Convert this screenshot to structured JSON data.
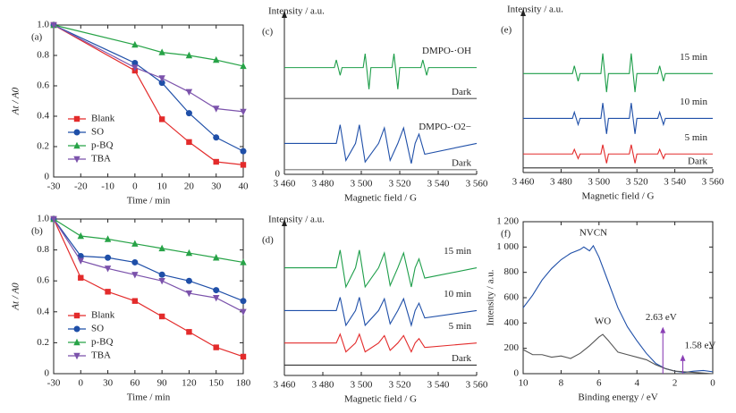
{
  "chart_data": [
    {
      "type": "line",
      "label": "(a)",
      "xlabel": "Time / min",
      "ylabel": "At / A0",
      "frame": "box",
      "legend": "lower left",
      "x": [
        -30,
        0,
        10,
        20,
        30,
        40
      ],
      "xlim": [
        -30,
        40
      ],
      "xticks": [
        -30,
        -20,
        -10,
        0,
        10,
        20,
        30,
        40
      ],
      "ylim": [
        0,
        1
      ],
      "yticks": [
        0,
        0.2,
        0.4,
        0.6,
        0.8,
        {
          "value": 1,
          "label": "1.0"
        }
      ],
      "series": [
        {
          "name": "Blank",
          "color": "#e32b2b",
          "marker": "square",
          "values": [
            1.0,
            0.7,
            0.38,
            0.23,
            0.1,
            0.08
          ]
        },
        {
          "name": "SO",
          "color": "#1f4fa8",
          "marker": "circle",
          "values": [
            1.0,
            0.75,
            0.62,
            0.42,
            0.26,
            0.17
          ]
        },
        {
          "name": "p-BQ",
          "color": "#27a347",
          "marker": "triangle-up",
          "values": [
            1.0,
            0.87,
            0.82,
            0.8,
            0.77,
            0.73
          ]
        },
        {
          "name": "TBA",
          "color": "#7b52ab",
          "marker": "triangle-down",
          "values": [
            1.0,
            0.72,
            0.65,
            0.56,
            0.45,
            0.43
          ]
        }
      ]
    },
    {
      "type": "line",
      "label": "(b)",
      "xlabel": "Time / min",
      "ylabel": "At / A0",
      "frame": "box",
      "legend": "lower left",
      "x": [
        -30,
        0,
        30,
        60,
        90,
        120,
        150,
        180
      ],
      "xlim": [
        -30,
        180
      ],
      "xticks": [
        -30,
        0,
        30,
        60,
        90,
        120,
        150,
        180
      ],
      "ylim": [
        0,
        1
      ],
      "yticks": [
        0,
        0.2,
        0.4,
        0.6,
        0.8,
        {
          "value": 1,
          "label": "1.0"
        }
      ],
      "series": [
        {
          "name": "Blank",
          "color": "#e32b2b",
          "marker": "square",
          "values": [
            1.0,
            0.62,
            0.53,
            0.47,
            0.37,
            0.27,
            0.17,
            0.11
          ]
        },
        {
          "name": "SO",
          "color": "#1f4fa8",
          "marker": "circle",
          "values": [
            1.0,
            0.76,
            0.75,
            0.72,
            0.64,
            0.6,
            0.54,
            0.47
          ]
        },
        {
          "name": "p-BQ",
          "color": "#27a347",
          "marker": "triangle-up",
          "values": [
            1.0,
            0.89,
            0.87,
            0.84,
            0.81,
            0.78,
            0.75,
            0.72
          ]
        },
        {
          "name": "TBA",
          "color": "#7b52ab",
          "marker": "triangle-down",
          "values": [
            1.0,
            0.73,
            0.68,
            0.64,
            0.6,
            0.52,
            0.49,
            0.4
          ]
        }
      ]
    },
    {
      "type": "line",
      "label": "(c)",
      "xlabel": "Magnetic field / G",
      "ylabel": "Intensity / a.u.",
      "frame": "axes",
      "direct_labels": "end",
      "xlim": [
        3460,
        3560
      ],
      "xticks": [
        {
          "value": 3460,
          "label": "3 460"
        },
        {
          "value": 3480,
          "label": "3 480"
        },
        {
          "value": 3500,
          "label": "3 500"
        },
        {
          "value": 3520,
          "label": "3 520"
        },
        {
          "value": 3540,
          "label": "3 540"
        },
        {
          "value": 3560,
          "label": "3 560"
        }
      ],
      "ylim": [
        0,
        10
      ],
      "yticks": [
        0
      ],
      "series": [
        {
          "name": "DMPO-·OH",
          "color": "#1e9e4a",
          "x": [
            3460,
            3486,
            3487,
            3489,
            3490,
            3501,
            3502,
            3504,
            3505,
            3516,
            3517,
            3519,
            3520,
            3531,
            3532,
            3534,
            3535,
            3560
          ],
          "values": [
            6.9,
            6.9,
            7.4,
            6.4,
            6.9,
            6.9,
            7.8,
            5.5,
            6.9,
            6.9,
            7.8,
            5.5,
            6.9,
            6.9,
            7.4,
            6.4,
            6.9,
            6.9
          ]
        },
        {
          "name": "Dark",
          "color": "#555555",
          "x": [
            3460,
            3560
          ],
          "values": [
            4.9,
            4.9
          ]
        },
        {
          "name": "DMPO-·O2−",
          "color": "#1f4fa8",
          "x": [
            3460,
            3487,
            3489,
            3492,
            3497,
            3499,
            3502,
            3509,
            3512,
            3515,
            3519,
            3522,
            3526,
            3528,
            3530,
            3533,
            3560
          ],
          "values": [
            2.0,
            2.0,
            3.2,
            0.9,
            2.0,
            3.2,
            0.8,
            2.0,
            3.0,
            0.9,
            2.0,
            3.0,
            0.7,
            2.0,
            2.6,
            1.3,
            2.0
          ]
        },
        {
          "name": "Dark",
          "color": "#777777",
          "x": [
            3460,
            3560
          ],
          "values": [
            0.3,
            0.3
          ]
        }
      ]
    },
    {
      "type": "line",
      "label": "(d)",
      "xlabel": "Magnetic field / G",
      "ylabel": "Intensity / a.u.",
      "frame": "axes",
      "direct_labels": "end",
      "xlim": [
        3460,
        3560
      ],
      "xticks": [
        {
          "value": 3460,
          "label": "3 460"
        },
        {
          "value": 3480,
          "label": "3 480"
        },
        {
          "value": 3500,
          "label": "3 500"
        },
        {
          "value": 3520,
          "label": "3 520"
        },
        {
          "value": 3540,
          "label": "3 540"
        },
        {
          "value": 3560,
          "label": "3 560"
        }
      ],
      "ylim": [
        0,
        10
      ],
      "series": [
        {
          "name": "15 min",
          "color": "#1e9e4a",
          "x": [
            3460,
            3487,
            3489,
            3492,
            3497,
            3499,
            3502,
            3509,
            3512,
            3515,
            3519,
            3522,
            3526,
            3528,
            3530,
            3533,
            3560
          ],
          "values": [
            7.3,
            7.3,
            8.5,
            6.0,
            7.3,
            8.5,
            6.0,
            7.3,
            8.3,
            6.1,
            7.3,
            8.3,
            6.0,
            7.3,
            7.9,
            6.6,
            7.3
          ]
        },
        {
          "name": "10 min",
          "color": "#1f4fa8",
          "x": [
            3460,
            3487,
            3489,
            3492,
            3497,
            3499,
            3502,
            3509,
            3512,
            3515,
            3519,
            3522,
            3526,
            3528,
            3530,
            3533,
            3560
          ],
          "values": [
            4.4,
            4.4,
            5.3,
            3.4,
            4.4,
            5.3,
            3.4,
            4.4,
            5.2,
            3.5,
            4.4,
            5.2,
            3.4,
            4.4,
            4.9,
            3.9,
            4.4
          ]
        },
        {
          "name": "5 min",
          "color": "#e32b2b",
          "x": [
            3460,
            3487,
            3489,
            3492,
            3497,
            3499,
            3502,
            3509,
            3512,
            3515,
            3519,
            3522,
            3526,
            3528,
            3530,
            3533,
            3560
          ],
          "values": [
            2.2,
            2.2,
            2.8,
            1.6,
            2.2,
            2.8,
            1.6,
            2.2,
            2.7,
            1.7,
            2.2,
            2.7,
            1.6,
            2.2,
            2.5,
            1.9,
            2.2
          ]
        },
        {
          "name": "Dark",
          "color": "#333333",
          "x": [
            3460,
            3560
          ],
          "values": [
            0.7,
            0.7
          ]
        }
      ]
    },
    {
      "type": "line",
      "label": "(e)",
      "xlabel": "Magnetic field / G",
      "ylabel": "Intensity / a.u.",
      "frame": "axes",
      "direct_labels": "end",
      "xlim": [
        3460,
        3560
      ],
      "xticks": [
        {
          "value": 3460,
          "label": "3 460"
        },
        {
          "value": 3480,
          "label": "3 480"
        },
        {
          "value": 3500,
          "label": "3 500"
        },
        {
          "value": 3520,
          "label": "3 520"
        },
        {
          "value": 3540,
          "label": "3 540"
        },
        {
          "value": 3560,
          "label": "3 560"
        }
      ],
      "ylim": [
        0,
        10
      ],
      "series": [
        {
          "name": "15 min",
          "color": "#1e9e4a",
          "x": [
            3460,
            3486,
            3487,
            3489,
            3490,
            3501,
            3502,
            3504,
            3505,
            3516,
            3517,
            3519,
            3520,
            3531,
            3532,
            3534,
            3535,
            3560
          ],
          "values": [
            6.4,
            6.4,
            6.9,
            5.9,
            6.4,
            6.4,
            7.7,
            5.2,
            6.4,
            6.4,
            7.7,
            5.2,
            6.4,
            6.4,
            6.9,
            5.9,
            6.4,
            6.4
          ]
        },
        {
          "name": "10 min",
          "color": "#1f4fa8",
          "x": [
            3460,
            3486,
            3487,
            3489,
            3490,
            3501,
            3502,
            3504,
            3505,
            3516,
            3517,
            3519,
            3520,
            3531,
            3532,
            3534,
            3535,
            3560
          ],
          "values": [
            3.5,
            3.5,
            3.9,
            3.1,
            3.5,
            3.5,
            4.5,
            2.5,
            3.5,
            3.5,
            4.5,
            2.5,
            3.5,
            3.5,
            3.9,
            3.1,
            3.5,
            3.5
          ]
        },
        {
          "name": "5 min",
          "color": "#e32b2b",
          "x": [
            3460,
            3486,
            3487,
            3489,
            3490,
            3501,
            3502,
            3504,
            3505,
            3516,
            3517,
            3519,
            3520,
            3531,
            3532,
            3534,
            3535,
            3560
          ],
          "values": [
            1.2,
            1.2,
            1.5,
            0.9,
            1.2,
            1.2,
            1.8,
            0.6,
            1.2,
            1.2,
            1.8,
            0.6,
            1.2,
            1.2,
            1.5,
            0.9,
            1.2,
            1.2
          ]
        },
        {
          "name": "Dark",
          "color": "#333333",
          "x": [
            3460,
            3560
          ],
          "values": [
            0.3,
            0.3
          ]
        }
      ]
    },
    {
      "type": "line",
      "label": "(f)",
      "xlabel": "Binding energy / eV",
      "ylabel": "Intensity / a.u.",
      "frame": "box",
      "direct_labels": "peak",
      "xlim": [
        10,
        0
      ],
      "xticks": [
        10,
        8,
        6,
        4,
        2,
        0
      ],
      "ylim": [
        0,
        1200
      ],
      "yticks": [
        0,
        200,
        400,
        600,
        800,
        {
          "value": 1000,
          "label": "1 000"
        },
        {
          "value": 1200,
          "label": "1 200"
        }
      ],
      "series": [
        {
          "name": "NVCN",
          "color": "#1f4fa8",
          "x": [
            10,
            9.5,
            9,
            8.5,
            8,
            7.5,
            7,
            6.8,
            6.5,
            6.3,
            6,
            5.5,
            5,
            4.5,
            4,
            3.5,
            3,
            2.5,
            2,
            1.5,
            1,
            0.5,
            0
          ],
          "values": [
            520,
            620,
            740,
            830,
            900,
            950,
            980,
            1000,
            970,
            1010,
            920,
            720,
            520,
            370,
            260,
            160,
            80,
            40,
            20,
            10,
            20,
            25,
            15
          ]
        },
        {
          "name": "WO",
          "color": "#555555",
          "x": [
            10,
            9.5,
            9,
            8.5,
            8,
            7.5,
            7,
            6.5,
            6,
            5.8,
            5.5,
            5,
            4.5,
            4,
            3.5,
            3,
            2.5,
            2,
            1.5,
            1,
            0.5,
            0
          ],
          "values": [
            190,
            150,
            150,
            130,
            140,
            120,
            160,
            220,
            290,
            310,
            260,
            170,
            150,
            130,
            110,
            70,
            40,
            20,
            15,
            10,
            5,
            0
          ]
        }
      ],
      "arrows": [
        {
          "label": "2.63 eV",
          "x": 2.63,
          "y": 370,
          "color": "#8a3fb5"
        },
        {
          "label": "1.58 eV",
          "x": 1.58,
          "y": 150,
          "color": "#8a3fb5"
        }
      ]
    }
  ]
}
